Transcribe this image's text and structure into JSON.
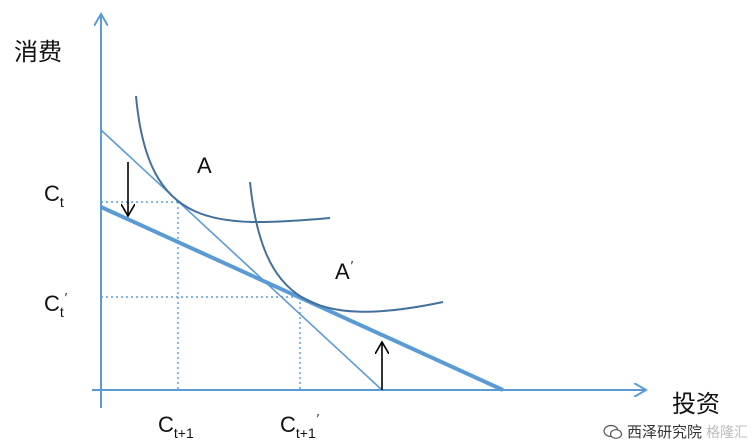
{
  "axes": {
    "y_title": "消费",
    "x_title": "投资",
    "color": "#5b9bd5"
  },
  "labels": {
    "ct": {
      "base": "C",
      "sub": "t",
      "prime": ""
    },
    "ct_prime": {
      "base": "C",
      "sub": "t",
      "prime": "′"
    },
    "ct1": {
      "base": "C",
      "sub": "t+1",
      "prime": ""
    },
    "ct1_prime": {
      "base": "C",
      "sub": "t+1",
      "prime": "′"
    }
  },
  "curves": {
    "indifference_a": "A",
    "indifference_a_prime": {
      "base": "A",
      "prime": "′"
    },
    "indifference_color": "#44709c"
  },
  "budget_lines": {
    "original_color": "#5b9bd5",
    "shifted_color": "#5b9bd5"
  },
  "watermark": {
    "source": "西泽研究院",
    "brand": "格隆汇"
  }
}
